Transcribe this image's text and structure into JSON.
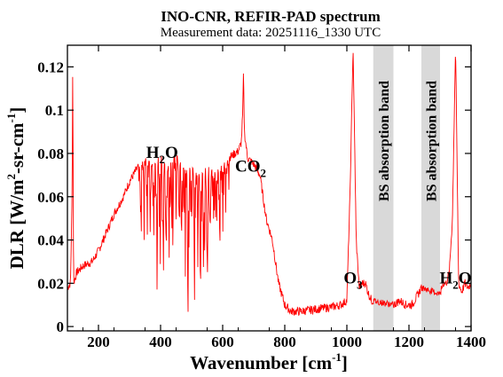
{
  "chart_data": {
    "type": "line",
    "title": "INO-CNR, REFIR-PAD spectrum",
    "subtitle": "Measurement data: 20251116_1330 UTC",
    "xlabel": {
      "main": "Wavenumber [cm",
      "sup": "-1",
      "tail": "]"
    },
    "ylabel": {
      "p1": "DLR [W/m",
      "sup1": "2",
      "p2": "-sr-cm",
      "sup2": "-1",
      "p3": "]"
    },
    "xlim": [
      100,
      1400
    ],
    "ylim": [
      -0.002,
      0.13
    ],
    "xticks": [
      200,
      400,
      600,
      800,
      1000,
      1200,
      1400
    ],
    "xtick_labels": [
      "200",
      "400",
      "600",
      "800",
      "1000",
      "1200",
      "1400"
    ],
    "yticks": [
      0,
      0.02,
      0.04,
      0.06,
      0.08,
      0.1,
      0.12
    ],
    "ytick_labels": [
      "0",
      "0.02",
      "0.04",
      "0.06",
      "0.08",
      "0.1",
      "0.12"
    ],
    "grid": false,
    "line_color": "#ff0000",
    "band_color": "#d9d9d9",
    "absorption_bands": [
      {
        "x0": 1085,
        "x1": 1150,
        "label": "BS absorption band"
      },
      {
        "x0": 1240,
        "x1": 1300,
        "label": "BS absorption band"
      }
    ],
    "annotations": [
      {
        "id": "h2o-left",
        "base": "H",
        "sub": "2",
        "tail": "O",
        "x": 405,
        "y": 0.078
      },
      {
        "id": "co2",
        "base": "CO",
        "sub": "2",
        "tail": "",
        "x": 690,
        "y": 0.0715
      },
      {
        "id": "o3",
        "base": "O",
        "sub": "3",
        "tail": "",
        "x": 1020,
        "y": 0.02
      },
      {
        "id": "h2o-right",
        "base": "H",
        "sub": "2",
        "tail": "O",
        "x": 1350,
        "y": 0.02
      }
    ],
    "series": [
      {
        "x": [
          100,
          110,
          115,
          117,
          120,
          130,
          150,
          180,
          200,
          230,
          250,
          280,
          300,
          320,
          350,
          380,
          400,
          420,
          450,
          480,
          500,
          520,
          550,
          580,
          600,
          620,
          640,
          650,
          660,
          665,
          667,
          670,
          680,
          700,
          720,
          730,
          740,
          750,
          760,
          770,
          780,
          790,
          800,
          820,
          850,
          900,
          950,
          980,
          1000,
          1010,
          1020,
          1030,
          1040,
          1050,
          1060,
          1070,
          1080,
          1150,
          1170,
          1190,
          1210,
          1230,
          1240,
          1300,
          1310,
          1320,
          1330,
          1340,
          1350,
          1360,
          1370,
          1380,
          1390,
          1400
        ],
        "y": [
          0.018,
          0.02,
          0.06,
          0.12,
          0.02,
          0.025,
          0.028,
          0.03,
          0.035,
          0.045,
          0.052,
          0.06,
          0.067,
          0.072,
          0.078,
          0.075,
          0.08,
          0.073,
          0.08,
          0.072,
          0.074,
          0.07,
          0.074,
          0.072,
          0.075,
          0.078,
          0.08,
          0.081,
          0.085,
          0.1,
          0.118,
          0.09,
          0.078,
          0.075,
          0.07,
          0.06,
          0.05,
          0.045,
          0.04,
          0.03,
          0.02,
          0.015,
          0.01,
          0.007,
          0.007,
          0.008,
          0.009,
          0.01,
          0.012,
          0.06,
          0.13,
          0.04,
          0.018,
          0.02,
          0.02,
          0.015,
          0.012,
          0.01,
          0.012,
          0.01,
          0.01,
          0.015,
          0.018,
          0.015,
          0.02,
          0.02,
          0.025,
          0.05,
          0.13,
          0.02,
          0.016,
          0.02,
          0.018,
          0.02
        ]
      }
    ]
  }
}
